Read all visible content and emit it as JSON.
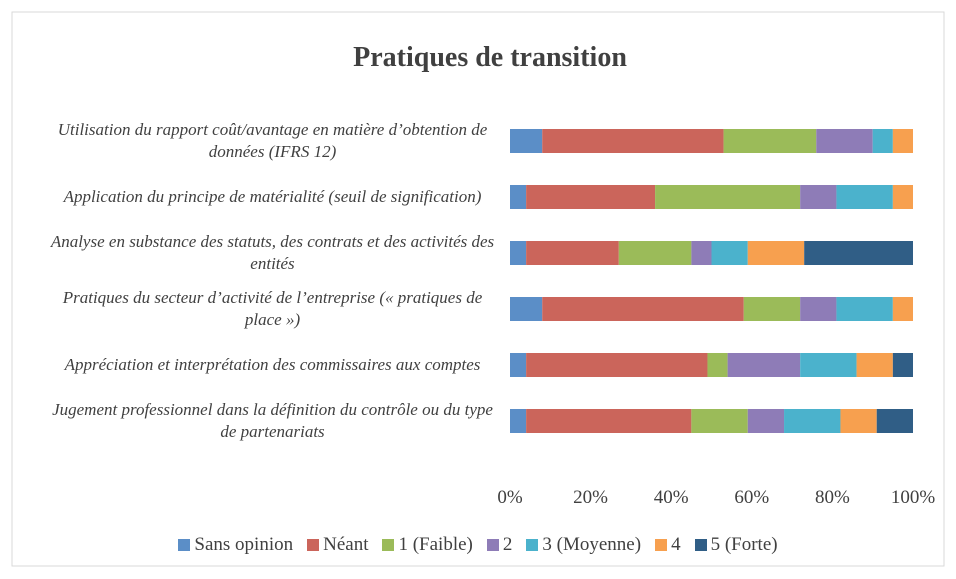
{
  "chart_data": {
    "type": "stacked_bar_horizontal",
    "title": "Pratiques de transition",
    "categories": [
      "Utilisation du rapport coût/avantage en matière d’obtention de données (IFRS 12)",
      "Application du principe de matérialité (seuil de signification)",
      "Analyse en substance des statuts, des contrats et des activités des entités",
      "Pratiques du secteur d’activité de l’entreprise (« pratiques de place »)",
      "Appréciation et interprétation des commissaires aux comptes",
      "Jugement professionnel dans la définition du contrôle ou du type de partenariats"
    ],
    "series": [
      {
        "name": "Sans opinion",
        "color": "#5b8ec7",
        "values": [
          8,
          4,
          4,
          8,
          4,
          4
        ]
      },
      {
        "name": "Néant",
        "color": "#cb655b",
        "values": [
          45,
          32,
          23,
          50,
          45,
          41
        ]
      },
      {
        "name": "1 (Faible)",
        "color": "#9bbb59",
        "values": [
          23,
          36,
          18,
          14,
          5,
          14
        ]
      },
      {
        "name": "2",
        "color": "#8e7cb7",
        "values": [
          14,
          9,
          5,
          9,
          18,
          9
        ]
      },
      {
        "name": "3 (Moyenne)",
        "color": "#4bb2cc",
        "values": [
          5,
          14,
          9,
          14,
          14,
          14
        ]
      },
      {
        "name": "4",
        "color": "#f7a04f",
        "values": [
          5,
          5,
          14,
          5,
          9,
          9
        ]
      },
      {
        "name": "5 (Forte)",
        "color": "#305e86",
        "values": [
          0,
          0,
          27,
          0,
          5,
          9
        ]
      }
    ],
    "xlim": [
      0,
      100
    ],
    "xticks": [
      {
        "value": 0,
        "label": "0%"
      },
      {
        "value": 20,
        "label": "20%"
      },
      {
        "value": 40,
        "label": "40%"
      },
      {
        "value": 60,
        "label": "60%"
      },
      {
        "value": 80,
        "label": "80%"
      },
      {
        "value": 100,
        "label": "100%"
      }
    ],
    "legend": "bottom"
  }
}
